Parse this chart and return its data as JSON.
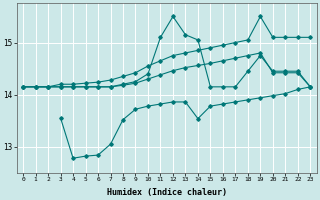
{
  "xlabel": "Humidex (Indice chaleur)",
  "bg_color": "#cce8e8",
  "line_color": "#007777",
  "grid_color": "#ffffff",
  "xlim": [
    -0.5,
    23.5
  ],
  "ylim": [
    12.5,
    15.75
  ],
  "yticks": [
    13,
    14,
    15
  ],
  "xticks": [
    0,
    1,
    2,
    3,
    4,
    5,
    6,
    7,
    8,
    9,
    10,
    11,
    12,
    13,
    14,
    15,
    16,
    17,
    18,
    19,
    20,
    21,
    22,
    23
  ],
  "series1_x": [
    0,
    1,
    2,
    3,
    4,
    5,
    6,
    7,
    8,
    9,
    10,
    11,
    12,
    13,
    14,
    15,
    16,
    17,
    18,
    19,
    20,
    21,
    22,
    23
  ],
  "series1_y": [
    14.15,
    14.15,
    14.15,
    14.2,
    14.2,
    14.22,
    14.24,
    14.28,
    14.35,
    14.42,
    14.55,
    14.65,
    14.75,
    14.8,
    14.85,
    14.9,
    14.95,
    15.0,
    15.05,
    15.5,
    15.1,
    15.1,
    15.1,
    15.1
  ],
  "series2_x": [
    0,
    1,
    2,
    3,
    4,
    5,
    6,
    7,
    8,
    9,
    10,
    11,
    12,
    13,
    14,
    15,
    16,
    17,
    18,
    19,
    20,
    21,
    22,
    23
  ],
  "series2_y": [
    14.15,
    14.15,
    14.15,
    14.15,
    14.15,
    14.15,
    14.15,
    14.15,
    14.2,
    14.25,
    14.4,
    15.1,
    15.5,
    15.15,
    15.05,
    14.15,
    14.15,
    14.15,
    14.45,
    14.75,
    14.45,
    14.45,
    14.45,
    14.15
  ],
  "series3_x": [
    3,
    4,
    5,
    6,
    7,
    8,
    9,
    10,
    11,
    12,
    13,
    14,
    15,
    16,
    17,
    18,
    19,
    20,
    21,
    22,
    23
  ],
  "series3_y": [
    13.55,
    12.78,
    12.82,
    12.84,
    13.05,
    13.52,
    13.72,
    13.78,
    13.82,
    13.86,
    13.86,
    13.54,
    13.78,
    13.82,
    13.86,
    13.9,
    13.94,
    13.98,
    14.02,
    14.1,
    14.15
  ],
  "series4_x": [
    0,
    1,
    2,
    3,
    4,
    5,
    6,
    7,
    8,
    9,
    10,
    11,
    12,
    13,
    14,
    15,
    16,
    17,
    18,
    19,
    20,
    21,
    22,
    23
  ],
  "series4_y": [
    14.15,
    14.15,
    14.15,
    14.15,
    14.15,
    14.15,
    14.15,
    14.15,
    14.18,
    14.22,
    14.3,
    14.38,
    14.46,
    14.52,
    14.56,
    14.6,
    14.65,
    14.7,
    14.75,
    14.8,
    14.42,
    14.42,
    14.42,
    14.15
  ]
}
